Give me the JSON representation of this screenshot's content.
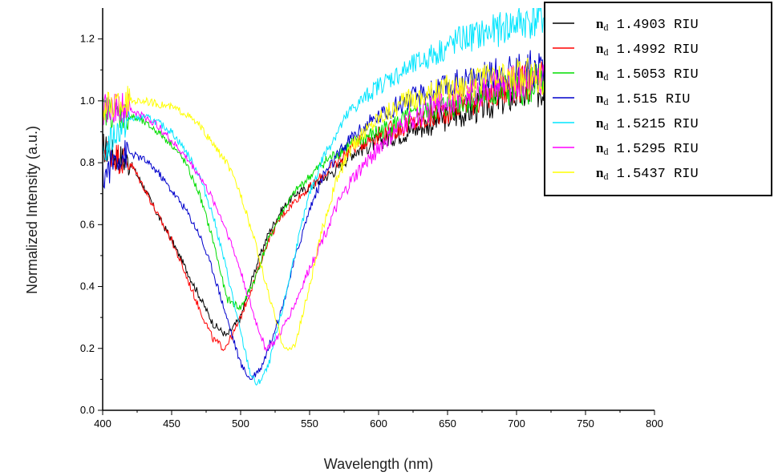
{
  "chart_data": {
    "type": "line",
    "xlabel": "Wavelength (nm)",
    "ylabel": "Normalized Intensity (a.u.)",
    "xlim": [
      400,
      800
    ],
    "ylim": [
      0.0,
      1.3
    ],
    "x_ticks": [
      400,
      450,
      500,
      550,
      600,
      650,
      700,
      750,
      800
    ],
    "y_ticks": [
      "0.0",
      "0.2",
      "0.4",
      "0.6",
      "0.8",
      "1.0",
      "1.2"
    ],
    "grid": false,
    "legend_position": "top-right",
    "series": [
      {
        "name": "n_d 1.4903 RIU",
        "legend_symbol": "n",
        "legend_subscript": "d",
        "legend_value": "1.4903 RIU",
        "color": "#000000",
        "x": [
          400,
          410,
          420,
          430,
          440,
          450,
          460,
          470,
          480,
          490,
          500,
          510,
          520,
          530,
          540,
          550,
          560,
          570,
          580,
          600,
          620,
          640,
          660,
          680,
          700,
          720
        ],
        "y": [
          0.85,
          0.82,
          0.8,
          0.72,
          0.63,
          0.55,
          0.46,
          0.37,
          0.28,
          0.24,
          0.3,
          0.45,
          0.57,
          0.65,
          0.7,
          0.72,
          0.75,
          0.78,
          0.83,
          0.87,
          0.9,
          0.93,
          0.96,
          0.99,
          1.02,
          1.04
        ]
      },
      {
        "name": "n_d 1.4992 RIU",
        "legend_symbol": "n",
        "legend_subscript": "d",
        "legend_value": "1.4992 RIU",
        "color": "#ff0000",
        "x": [
          400,
          410,
          420,
          430,
          440,
          450,
          460,
          470,
          480,
          488,
          495,
          500,
          510,
          520,
          530,
          540,
          550,
          560,
          570,
          580,
          600,
          620,
          640,
          660,
          680,
          700,
          720
        ],
        "y": [
          0.85,
          0.82,
          0.8,
          0.72,
          0.63,
          0.55,
          0.44,
          0.33,
          0.23,
          0.2,
          0.25,
          0.3,
          0.42,
          0.55,
          0.63,
          0.68,
          0.72,
          0.76,
          0.8,
          0.85,
          0.89,
          0.92,
          0.95,
          0.99,
          1.02,
          1.05,
          1.07
        ]
      },
      {
        "name": "n_d 1.5053 RIU",
        "legend_symbol": "n",
        "legend_subscript": "d",
        "legend_value": "1.5053 RIU",
        "color": "#00dd00",
        "x": [
          400,
          410,
          420,
          430,
          440,
          450,
          460,
          470,
          480,
          490,
          500,
          510,
          520,
          530,
          540,
          560,
          580,
          600,
          620,
          640,
          660,
          680,
          700,
          720
        ],
        "y": [
          0.97,
          0.96,
          0.95,
          0.93,
          0.9,
          0.86,
          0.8,
          0.7,
          0.55,
          0.36,
          0.33,
          0.42,
          0.55,
          0.64,
          0.71,
          0.8,
          0.86,
          0.9,
          0.94,
          0.97,
          1.0,
          1.02,
          1.04,
          1.06
        ]
      },
      {
        "name": "n_d 1.515 RIU",
        "legend_symbol": "n",
        "legend_subscript": "d",
        "legend_value": "1.515 RIU",
        "color": "#0000cc",
        "x": [
          400,
          410,
          420,
          430,
          440,
          450,
          460,
          470,
          480,
          490,
          500,
          507,
          515,
          520,
          530,
          540,
          550,
          560,
          580,
          600,
          620,
          640,
          660,
          680,
          700,
          720
        ],
        "y": [
          0.75,
          0.82,
          0.83,
          0.81,
          0.77,
          0.71,
          0.65,
          0.57,
          0.45,
          0.3,
          0.15,
          0.1,
          0.14,
          0.2,
          0.33,
          0.5,
          0.65,
          0.76,
          0.88,
          0.95,
          1.0,
          1.03,
          1.06,
          1.08,
          1.1,
          1.11
        ]
      },
      {
        "name": "n_d 1.5215 RIU",
        "legend_symbol": "n",
        "legend_subscript": "d",
        "legend_value": "1.5215 RIU",
        "color": "#00e5ff",
        "x": [
          400,
          410,
          420,
          430,
          440,
          450,
          460,
          470,
          480,
          490,
          500,
          507,
          512,
          520,
          530,
          540,
          550,
          560,
          570,
          580,
          600,
          620,
          640,
          660,
          680,
          700,
          720
        ],
        "y": [
          0.82,
          0.9,
          0.94,
          0.95,
          0.93,
          0.9,
          0.84,
          0.76,
          0.63,
          0.45,
          0.25,
          0.12,
          0.08,
          0.14,
          0.32,
          0.52,
          0.7,
          0.82,
          0.9,
          0.97,
          1.05,
          1.1,
          1.15,
          1.2,
          1.22,
          1.25,
          1.27
        ]
      },
      {
        "name": "n_d 1.5295 RIU",
        "legend_symbol": "n",
        "legend_subscript": "d",
        "legend_value": "1.5295 RIU",
        "color": "#ff00ff",
        "x": [
          400,
          410,
          420,
          430,
          440,
          450,
          460,
          470,
          480,
          490,
          500,
          510,
          518,
          525,
          530,
          540,
          550,
          560,
          570,
          580,
          600,
          620,
          640,
          660,
          680,
          700,
          720
        ],
        "y": [
          0.97,
          0.98,
          0.97,
          0.95,
          0.92,
          0.87,
          0.82,
          0.76,
          0.68,
          0.58,
          0.45,
          0.3,
          0.2,
          0.22,
          0.26,
          0.35,
          0.46,
          0.56,
          0.66,
          0.74,
          0.85,
          0.93,
          0.98,
          1.02,
          1.04,
          1.06,
          1.08
        ]
      },
      {
        "name": "n_d 1.5437 RIU",
        "legend_symbol": "n",
        "legend_subscript": "d",
        "legend_value": "1.5437 RIU",
        "color": "#ffff00",
        "x": [
          400,
          410,
          420,
          430,
          440,
          450,
          460,
          470,
          480,
          490,
          500,
          510,
          520,
          530,
          535,
          540,
          550,
          560,
          570,
          580,
          600,
          620,
          640,
          660,
          680,
          700,
          720
        ],
        "y": [
          0.97,
          0.99,
          1.0,
          1.0,
          0.99,
          0.98,
          0.96,
          0.92,
          0.86,
          0.8,
          0.7,
          0.55,
          0.38,
          0.22,
          0.19,
          0.22,
          0.4,
          0.6,
          0.75,
          0.85,
          0.95,
          1.0,
          1.03,
          1.05,
          1.07,
          1.08,
          1.08
        ]
      }
    ]
  }
}
